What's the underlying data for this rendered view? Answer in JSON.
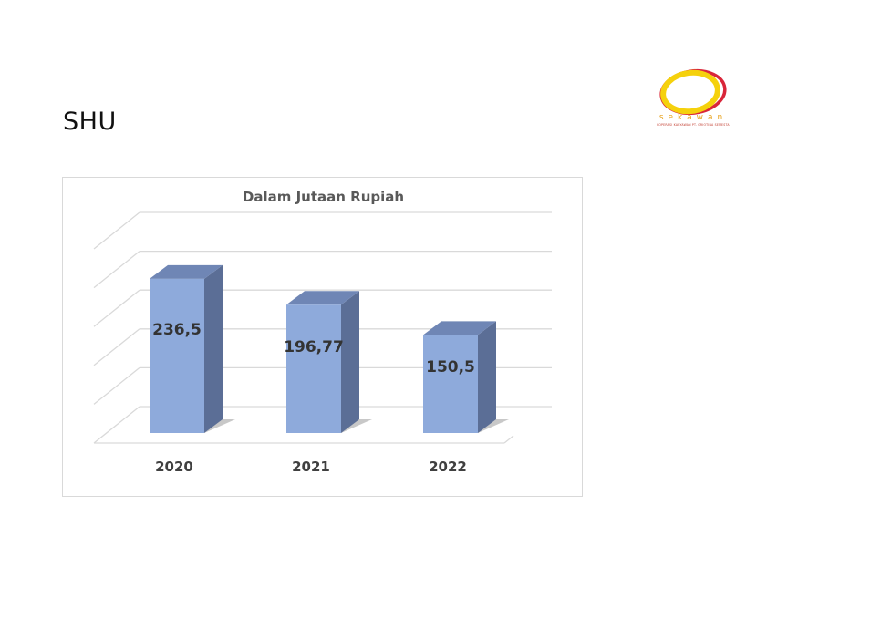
{
  "page": {
    "title": "SHU"
  },
  "logo": {
    "word": "sekawan",
    "subtitle": "KOPERASI KARYAWAN PT. GRIOTINA SEMESTA",
    "colors": {
      "ring_yellow": "#f5d10c",
      "ring_red": "#d9263a",
      "text": "#e8a21c"
    }
  },
  "chart_data": {
    "type": "bar",
    "style": "3d-column",
    "title": "Dalam Jutaan Rupiah",
    "xlabel": "",
    "ylabel": "",
    "categories": [
      "2020",
      "2021",
      "2022"
    ],
    "values": [
      236.5,
      196.77,
      150.5
    ],
    "value_labels": [
      "236,5",
      "196,77",
      "150,5"
    ],
    "ylim": [
      0,
      250
    ],
    "grid": true,
    "legend": "none",
    "colors": {
      "bar_front": "#8eaadb",
      "bar_side": "#5b6e96",
      "bar_top": "#6f86b5"
    }
  }
}
